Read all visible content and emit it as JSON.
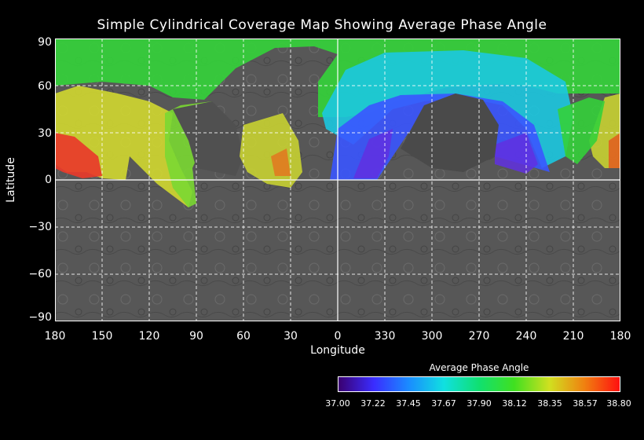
{
  "title": "Simple Cylindrical Coverage Map Showing Average Phase Angle",
  "x_axis": {
    "label": "Longitude",
    "ticks": [
      "180",
      "150",
      "120",
      "90",
      "60",
      "30",
      "0",
      "330",
      "300",
      "270",
      "240",
      "210",
      "180"
    ]
  },
  "y_axis": {
    "label": "Latitude",
    "ticks": [
      "90",
      "60",
      "30",
      "0",
      "−30",
      "−60",
      "−90"
    ]
  },
  "colorbar": {
    "title": "Average Phase Angle",
    "ticks": [
      "37.00",
      "37.22",
      "37.45",
      "37.67",
      "37.90",
      "38.12",
      "38.35",
      "38.57",
      "38.80"
    ],
    "colors": [
      "#3a0070",
      "#3a2cff",
      "#1a8cff",
      "#10e0e0",
      "#10e070",
      "#40e020",
      "#d0e020",
      "#f08010",
      "#ff1010"
    ]
  },
  "colors": {
    "background": "#000000",
    "grid": "#ffffff",
    "terrain": "#555555"
  }
}
